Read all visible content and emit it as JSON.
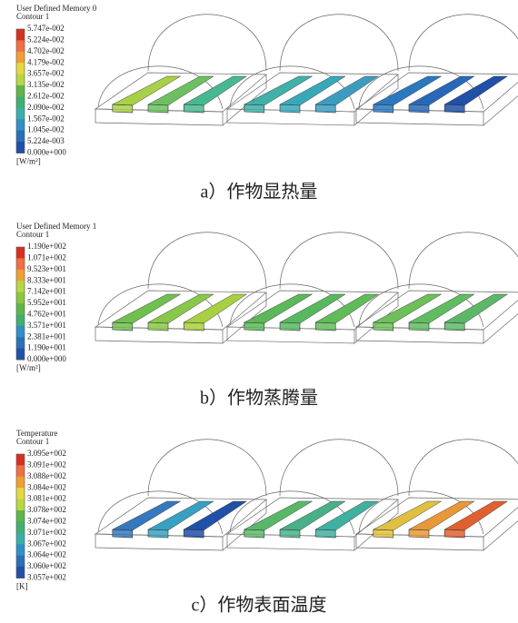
{
  "panels": [
    {
      "title": [
        "User Defined Memory 0",
        "Contour 1"
      ],
      "labels": [
        "5.747e-002",
        "5.224e-002",
        "4.702e-002",
        "4.179e-002",
        "3.657e-002",
        "3.135e-002",
        "2.612e-002",
        "2.090e-002",
        "1.567e-002",
        "1.045e-002",
        "5.224e-003",
        "0.000e+000"
      ],
      "unit": "[W/m²]",
      "caption": "a）作物显热量"
    },
    {
      "title": [
        "User Defined Memory 1",
        "Contour 1"
      ],
      "labels": [
        "1.190e+002",
        "1.071e+002",
        "9.523e+001",
        "8.333e+001",
        "7.142e+001",
        "5.952e+001",
        "4.762e+001",
        "3.571e+001",
        "2.381e+001",
        "1.190e+001",
        "0.000e+000"
      ],
      "unit": "[W/m²]",
      "caption": "b）作物蒸腾量"
    },
    {
      "title": [
        "Temperature",
        "Contour 1"
      ],
      "labels": [
        "3.095e+002",
        "3.091e+002",
        "3.088e+002",
        "3.084e+002",
        "3.081e+002",
        "3.078e+002",
        "3.074e+002",
        "3.071e+002",
        "3.067e+002",
        "3.064e+002",
        "3.060e+002",
        "3.057e+002"
      ],
      "unit": "[K]",
      "caption": "c）作物表面温度"
    }
  ]
}
